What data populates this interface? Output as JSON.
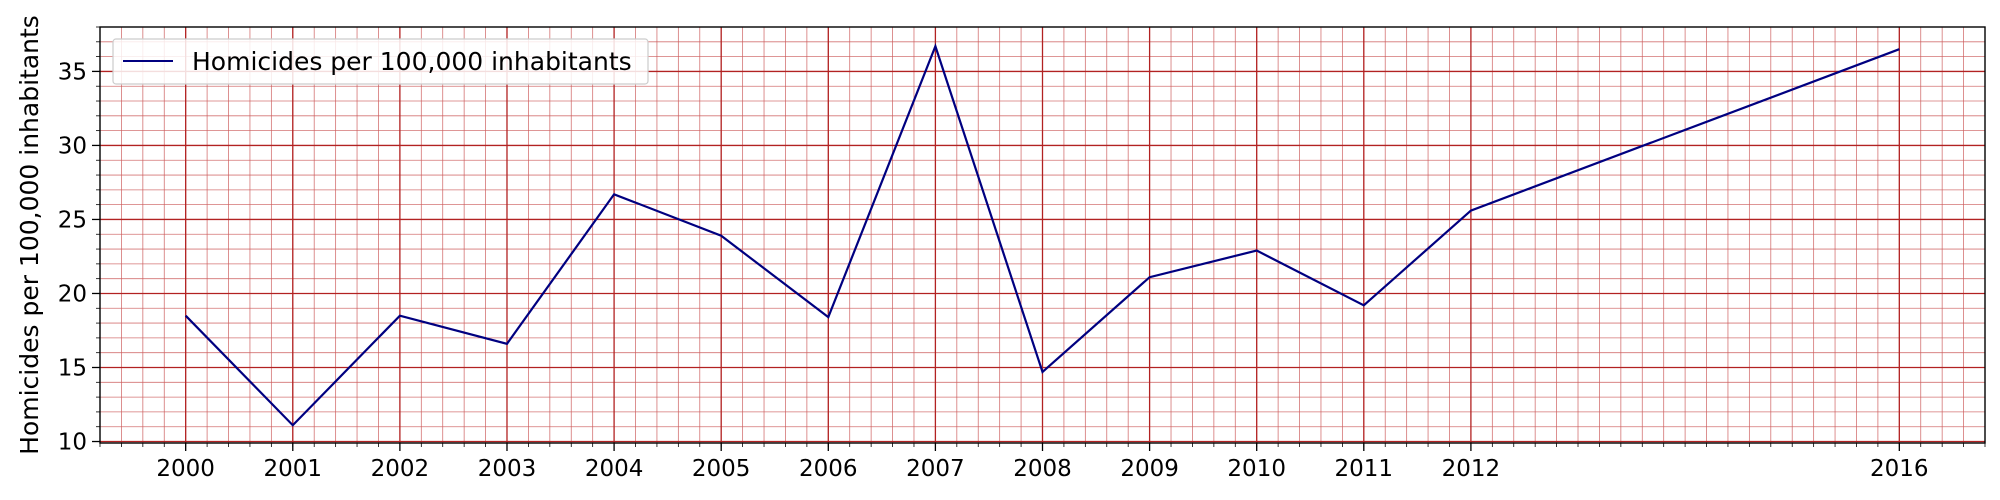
{
  "chart_data": {
    "type": "line",
    "title": "",
    "xlabel": "",
    "ylabel": "Homicides per 100,000 inhabitants",
    "x_ticks": [
      2000,
      2001,
      2002,
      2003,
      2004,
      2005,
      2006,
      2007,
      2008,
      2009,
      2010,
      2011,
      2012,
      2016
    ],
    "y_ticks": [
      10,
      15,
      20,
      25,
      30,
      35
    ],
    "xlim": [
      1999.2,
      2016.8
    ],
    "ylim": [
      9.9,
      38.0
    ],
    "grid": true,
    "minor_grid": true,
    "legend_position": "upper-left",
    "series": [
      {
        "name": "Homicides per 100,000 inhabitants",
        "color": "#000080",
        "x": [
          2000,
          2001,
          2002,
          2003,
          2004,
          2005,
          2006,
          2007,
          2008,
          2009,
          2010,
          2011,
          2012,
          2016
        ],
        "values": [
          18.5,
          11.1,
          18.5,
          16.6,
          26.7,
          23.9,
          18.4,
          36.7,
          14.7,
          21.1,
          22.9,
          19.2,
          25.6,
          36.5
        ]
      }
    ],
    "colors": {
      "major_grid": "#b22222",
      "minor_grid": "#cd5c5c",
      "line": "#000080"
    }
  }
}
